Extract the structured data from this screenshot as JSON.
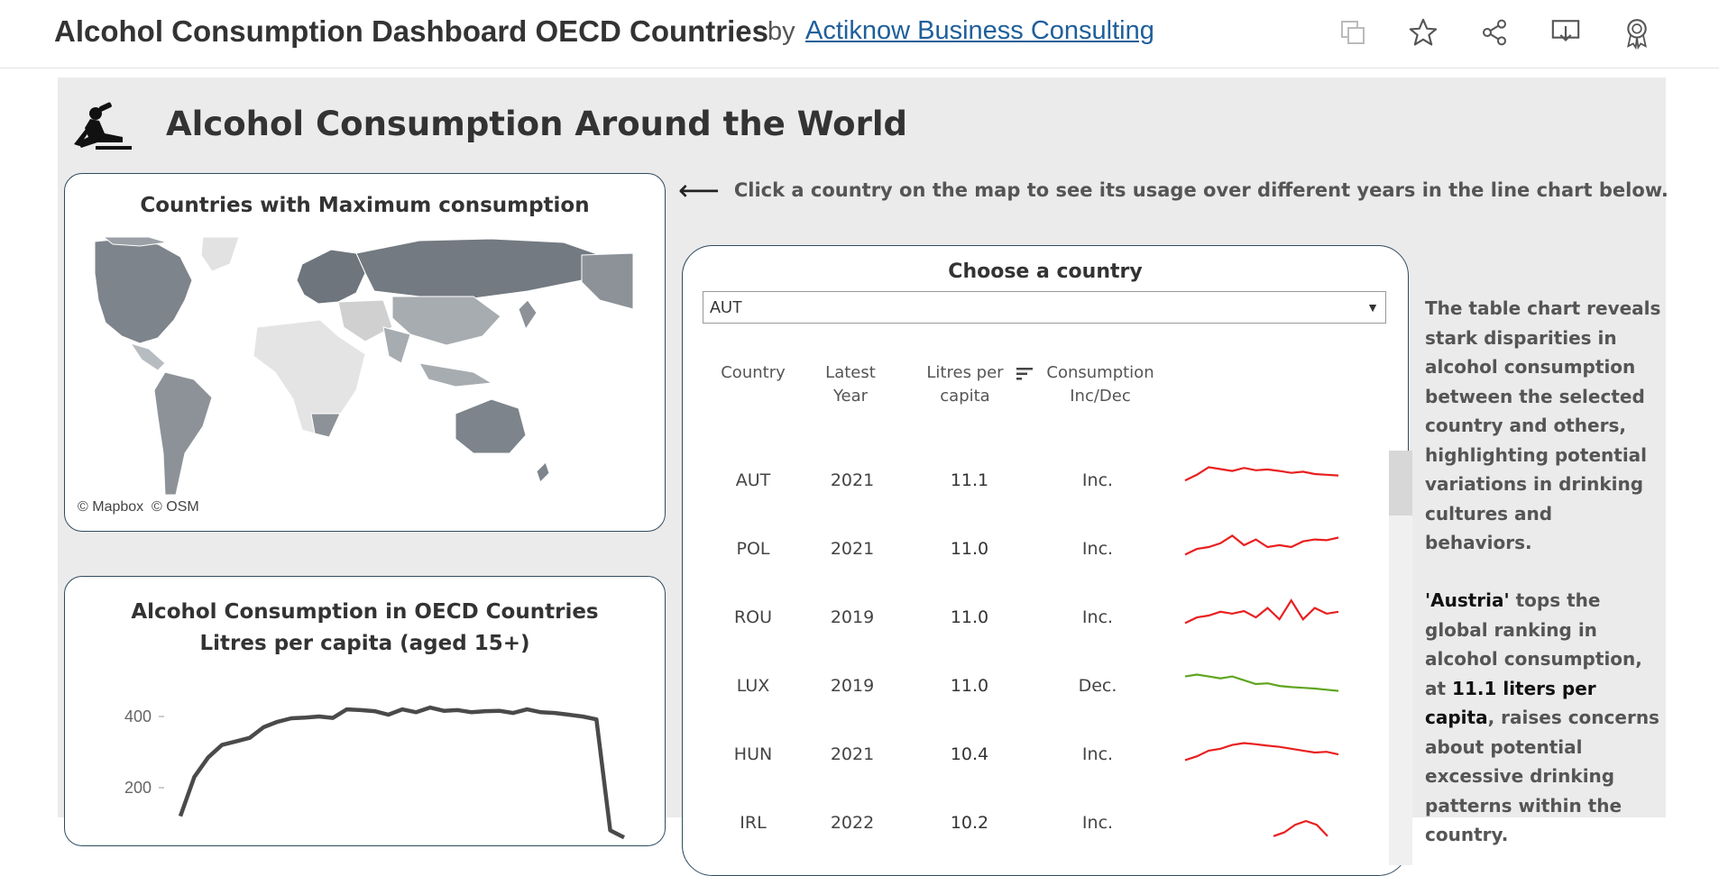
{
  "header": {
    "title": "Alcohol Consumption Dashboard OECD Countries",
    "by": "by",
    "author": "Actiknow Business Consulting",
    "icons": [
      "copy-icon",
      "star-icon",
      "share-icon",
      "download-icon",
      "award-icon"
    ]
  },
  "dashboard": {
    "title": "Alcohol Consumption Around the World",
    "map": {
      "title": "Countries with Maximum consumption",
      "credit_mapbox": "© Mapbox",
      "credit_osm": "© OSM"
    },
    "hint": "Click a country on the map to see its usage over different years in the line chart below.",
    "table": {
      "title": "Choose a country",
      "selected": "AUT",
      "headers": {
        "country": "Country",
        "latest_year_1": "Latest",
        "latest_year_2": "Year",
        "litres_1": "Litres per",
        "litres_2": "capita",
        "cons_1": "Consumption",
        "cons_2": "Inc/Dec"
      },
      "rows": [
        {
          "country": "AUT",
          "year": "2021",
          "litres": "11.1",
          "trend": "Inc.",
          "color": "#e8201f"
        },
        {
          "country": "POL",
          "year": "2021",
          "litres": "11.0",
          "trend": "Inc.",
          "color": "#e8201f"
        },
        {
          "country": "ROU",
          "year": "2019",
          "litres": "11.0",
          "trend": "Inc.",
          "color": "#e8201f"
        },
        {
          "country": "LUX",
          "year": "2019",
          "litres": "11.0",
          "trend": "Dec.",
          "color": "#5fa51f"
        },
        {
          "country": "HUN",
          "year": "2021",
          "litres": "10.4",
          "trend": "Inc.",
          "color": "#e8201f"
        },
        {
          "country": "IRL",
          "year": "2022",
          "litres": "10.2",
          "trend": "Inc.",
          "color": "#e8201f"
        }
      ]
    },
    "side_text_1": "The table chart reveals stark disparities in alcohol consumption between the selected country and others, highlighting potential variations in drinking cultures and behaviors.",
    "side_text_2": {
      "country": "'Austria'",
      "part1": " tops the global ranking in alcohol consumption, at ",
      "value": "11.1 liters per capita",
      "part2": ", raises concerns about potential excessive drinking patterns within the country."
    }
  },
  "chart_data": {
    "type": "line",
    "title": "Alcohol Consumption in OECD Countries",
    "subtitle": "Litres per capita (aged 15+)",
    "ylabel": "",
    "ylim": [
      0,
      470
    ],
    "yticks": [
      200,
      400
    ],
    "series": [
      {
        "values": [
          120,
          230,
          285,
          320,
          330,
          340,
          370,
          385,
          395,
          397,
          400,
          396,
          420,
          418,
          415,
          405,
          420,
          412,
          425,
          416,
          418,
          412,
          415,
          416,
          410,
          420,
          412,
          410,
          405,
          400,
          392,
          80,
          60
        ]
      }
    ],
    "colors": {
      "line": "#4a4a4a"
    }
  }
}
